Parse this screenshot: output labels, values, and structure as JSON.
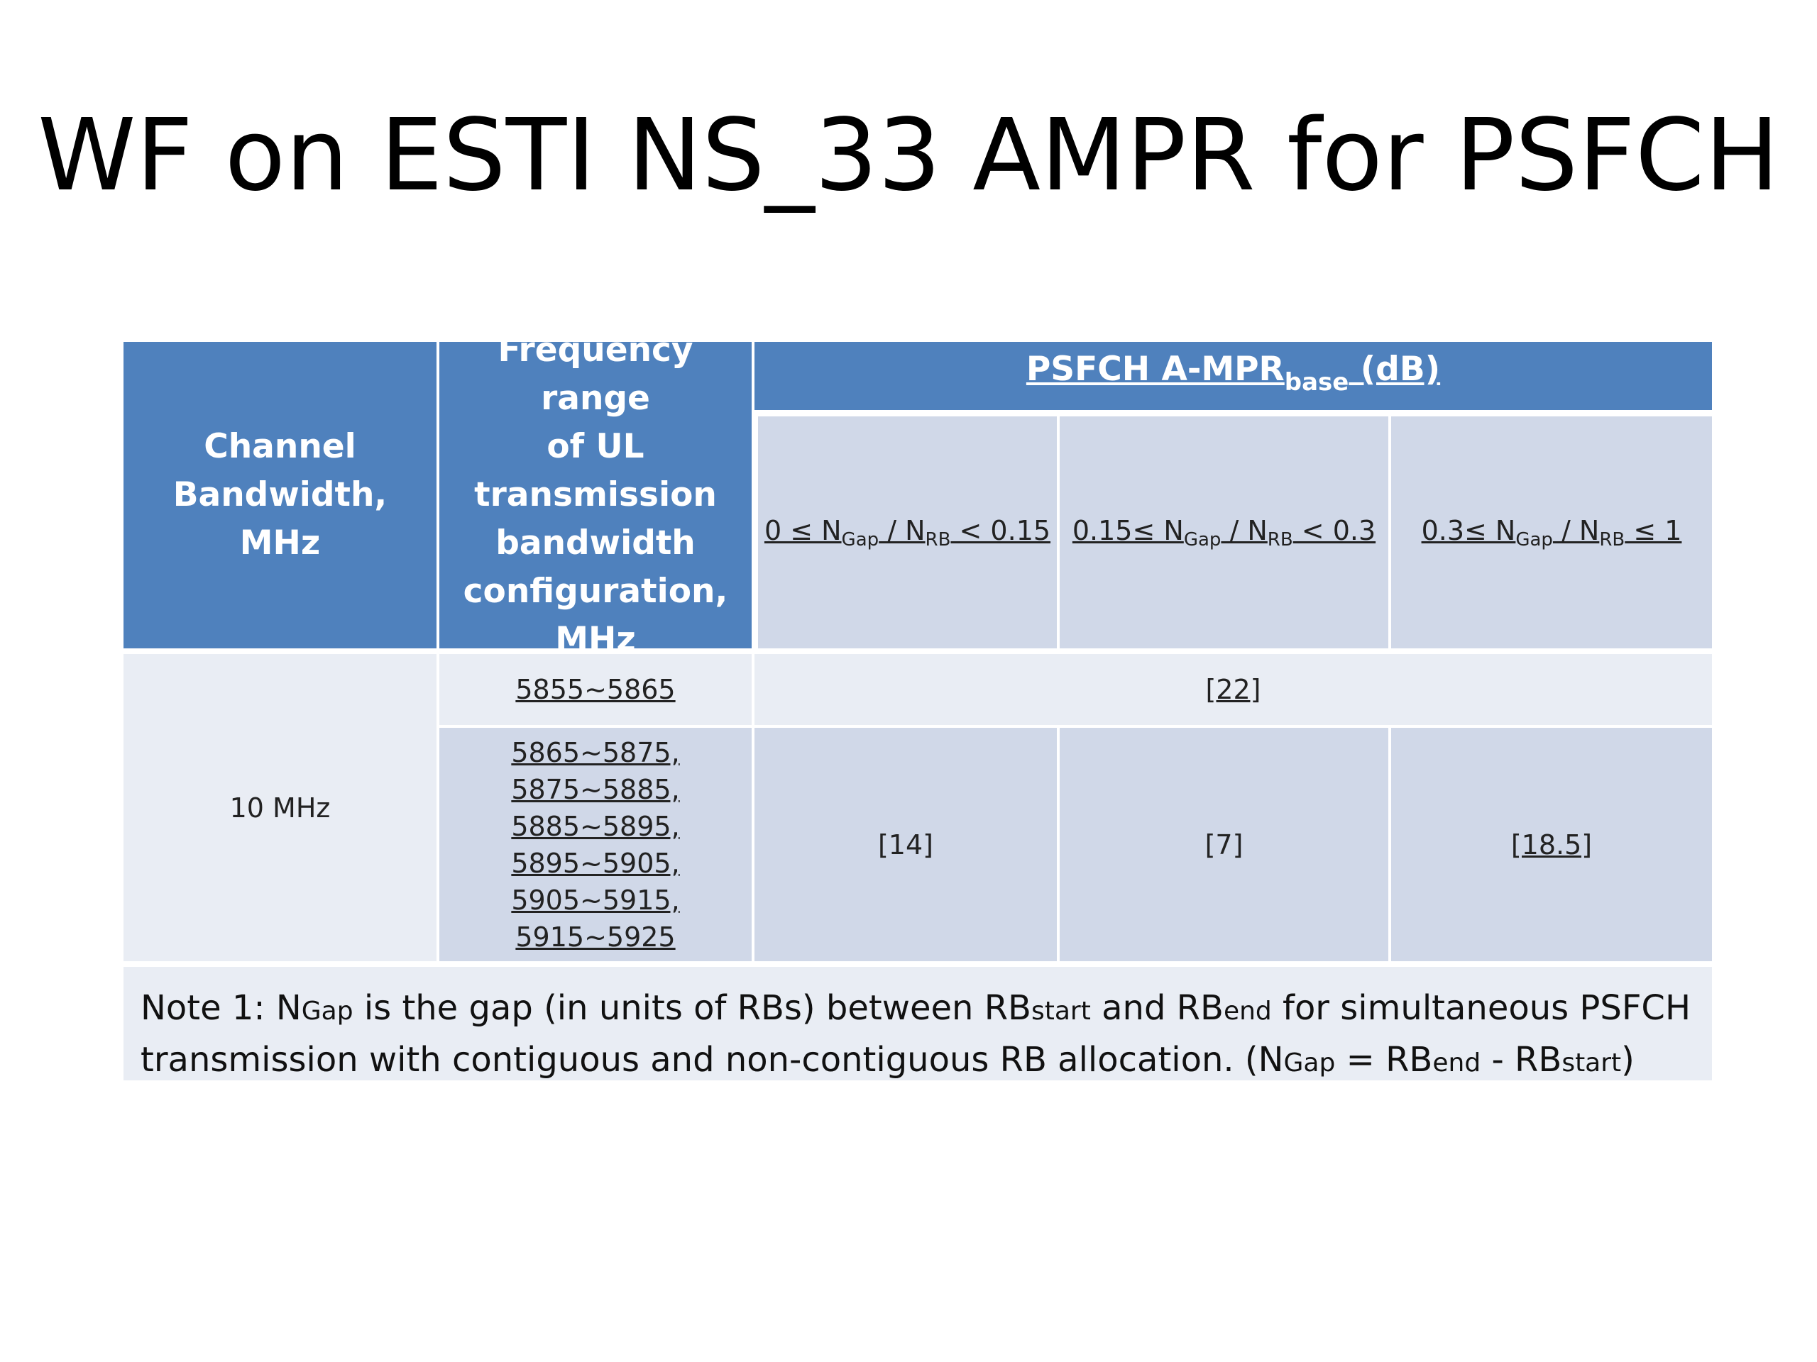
{
  "slide": {
    "title": "WF on ESTI NS_33 AMPR for PSFCH"
  },
  "table": {
    "header": {
      "channel_bw": [
        "Channel",
        "Bandwidth,",
        "MHz"
      ],
      "freq_range": [
        "Frequency range",
        "of UL",
        "transmission",
        "bandwidth",
        "configuration,",
        "MHz"
      ],
      "psfch_main": "PSFCH A-MPR",
      "psfch_sub": "base",
      "psfch_unit": " (dB)"
    },
    "ratio_cols": [
      {
        "prefix": "0 ≤ N",
        "gap": "Gap",
        "mid": " / N",
        "rb": "RB",
        "suffix": " < 0.15"
      },
      {
        "prefix": "0.15≤ N",
        "gap": "Gap",
        "mid": " / N",
        "rb": "RB",
        "suffix": " < 0.3"
      },
      {
        "prefix": "0.3≤ N",
        "gap": "Gap",
        "mid": " / N",
        "rb": "RB",
        "suffix": " ≤ 1"
      }
    ],
    "rows": {
      "channel_bw_value": "10 MHz",
      "row1_freq": "5855~5865",
      "row1_value": "[22]",
      "row2_freqs": [
        "5865~5875,",
        "5875~5885,",
        "5885~5895,",
        "5895~5905,",
        "5905~5915,",
        "5915~5925"
      ],
      "row2_values": [
        "[14]",
        "[7]",
        "[18.5]"
      ]
    },
    "note": {
      "p1": "Note 1: N",
      "s1": "Gap",
      "p2": " is the gap (in units of RBs) between RB",
      "s2": "start",
      "p3": " and RB",
      "s3": "end",
      "p4": " for simultaneous PSFCH transmission with contiguous and non-contiguous RB allocation. (N",
      "s4": "Gap",
      "p5": " = RB",
      "s5": "end",
      "p6": " - RB",
      "s6": "start",
      "p7": ")"
    }
  },
  "colors": {
    "header_blue": "#4f81bd",
    "sub_header": "#d0d8e8",
    "light_row": "#e9edf4"
  }
}
